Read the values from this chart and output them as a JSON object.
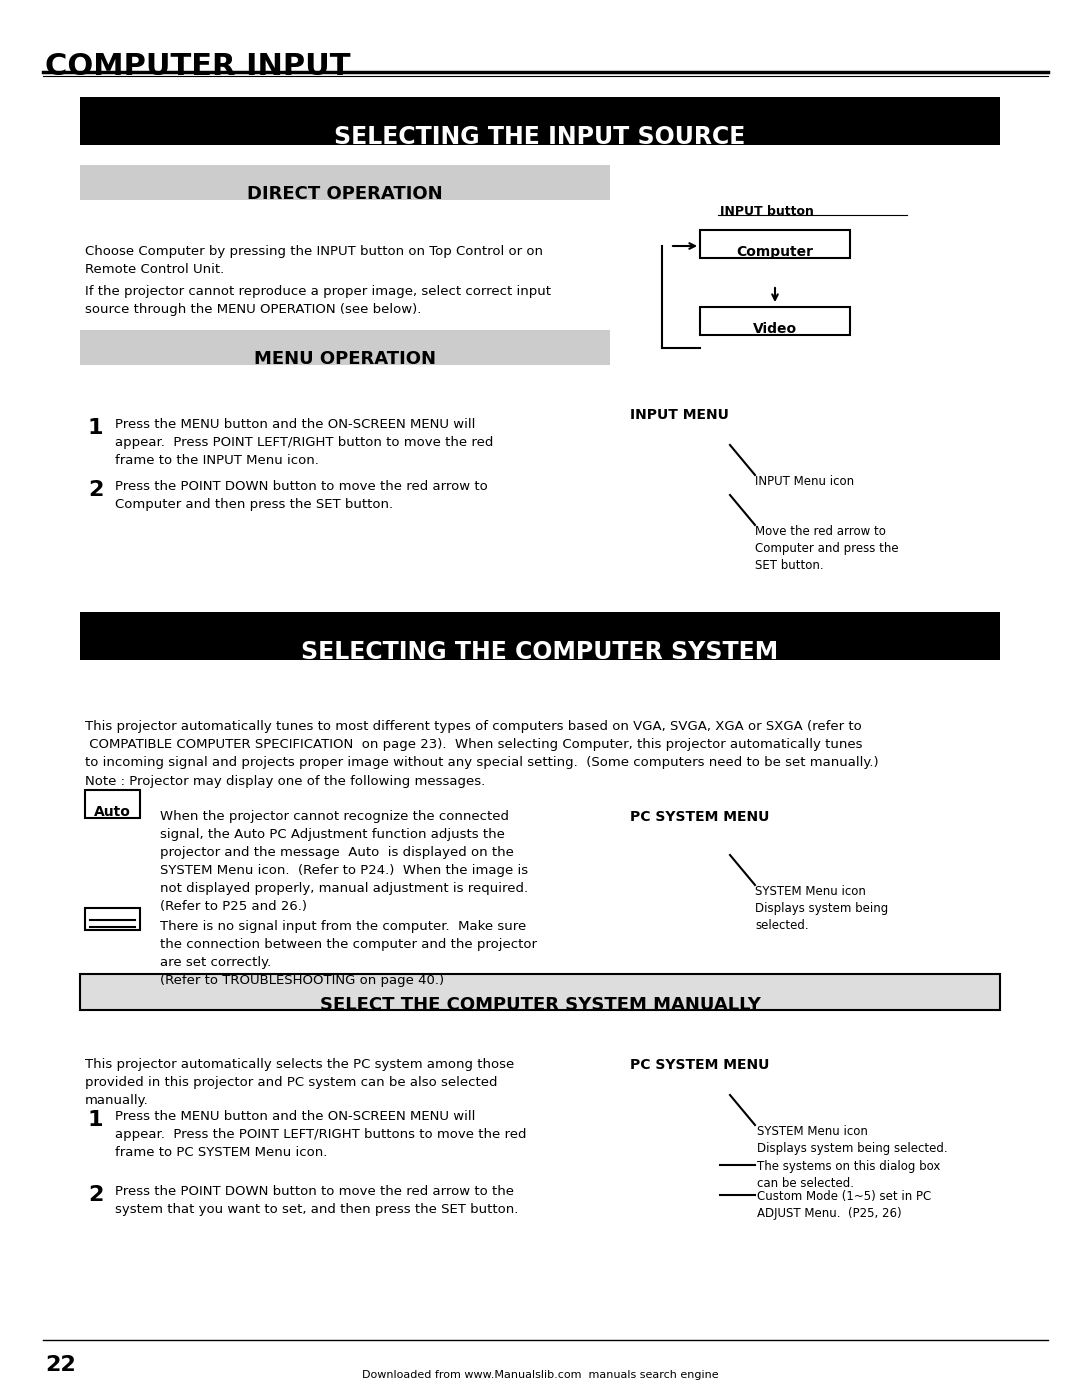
{
  "page_title": "COMPUTER INPUT",
  "section1_title": "SELECTING THE INPUT SOURCE",
  "direct_op_title": "DIRECT OPERATION",
  "direct_op_text1": "Choose Computer by pressing the INPUT button on Top Control or on\nRemote Control Unit.",
  "direct_op_text2": "If the projector cannot reproduce a proper image, select correct input\nsource through the MENU OPERATION (see below).",
  "input_button_label": "INPUT button",
  "computer_label": "Computer",
  "video_label": "Video",
  "menu_op_title": "MENU OPERATION",
  "input_menu_label": "INPUT MENU",
  "step1_num": "1",
  "step1_text": "Press the MENU button and the ON-SCREEN MENU will\nappear.  Press POINT LEFT/RIGHT button to move the red\nframe to the INPUT Menu icon.",
  "step2_num": "2",
  "step2_text": "Press the POINT DOWN button to move the red arrow to\nComputer and then press the SET button.",
  "input_menu_icon_label": "INPUT Menu icon",
  "move_red_arrow_label": "Move the red arrow to\nComputer and press the\nSET button.",
  "section2_title": "SELECTING THE COMPUTER SYSTEM",
  "section2_body": "This projector automatically tunes to most different types of computers based on VGA, SVGA, XGA or SXGA (refer to\n COMPATIBLE COMPUTER SPECIFICATION  on page 23).  When selecting Computer, this projector automatically tunes\nto incoming signal and projects proper image without any special setting.  (Some computers need to be set manually.)",
  "note_text": "Note : Projector may display one of the following messages.",
  "auto_label": "Auto",
  "auto_text": "When the projector cannot recognize the connected\nsignal, the Auto PC Adjustment function adjusts the\nprojector and the message  Auto  is displayed on the\nSYSTEM Menu icon.  (Refer to P24.)  When the image is\nnot displayed properly, manual adjustment is required.\n(Refer to P25 and 26.)",
  "nosignal_text": "There is no signal input from the computer.  Make sure\nthe connection between the computer and the projector\nare set correctly.\n(Refer to TROUBLESHOOTING on page 40.)",
  "pc_system_menu_label1": "PC SYSTEM MENU",
  "system_menu_icon_label": "SYSTEM Menu icon\nDisplays system being\nselected.",
  "select_manually_title": "SELECT THE COMPUTER SYSTEM MANUALLY",
  "select_manually_body": "This projector automatically selects the PC system among those\nprovided in this projector and PC system can be also selected\nmanually.",
  "pc_system_menu_label2": "PC SYSTEM MENU",
  "step3_num": "1",
  "step3_text": "Press the MENU button and the ON-SCREEN MENU will\nappear.  Press the POINT LEFT/RIGHT buttons to move the red\nframe to PC SYSTEM Menu icon.",
  "step4_num": "2",
  "step4_text": "Press the POINT DOWN button to move the red arrow to the\nsystem that you want to set, and then press the SET button.",
  "system_menu_icon_label2": "SYSTEM Menu icon\nDisplays system being selected.",
  "systems_dialog_label": "The systems on this dialog box\ncan be selected.",
  "custom_mode_label": "Custom Mode (1~5) set in PC\nADJUST Menu.  (P25, 26)",
  "page_number": "22",
  "footer_text": "Downloaded from www.Manualslib.com  manuals search engine"
}
